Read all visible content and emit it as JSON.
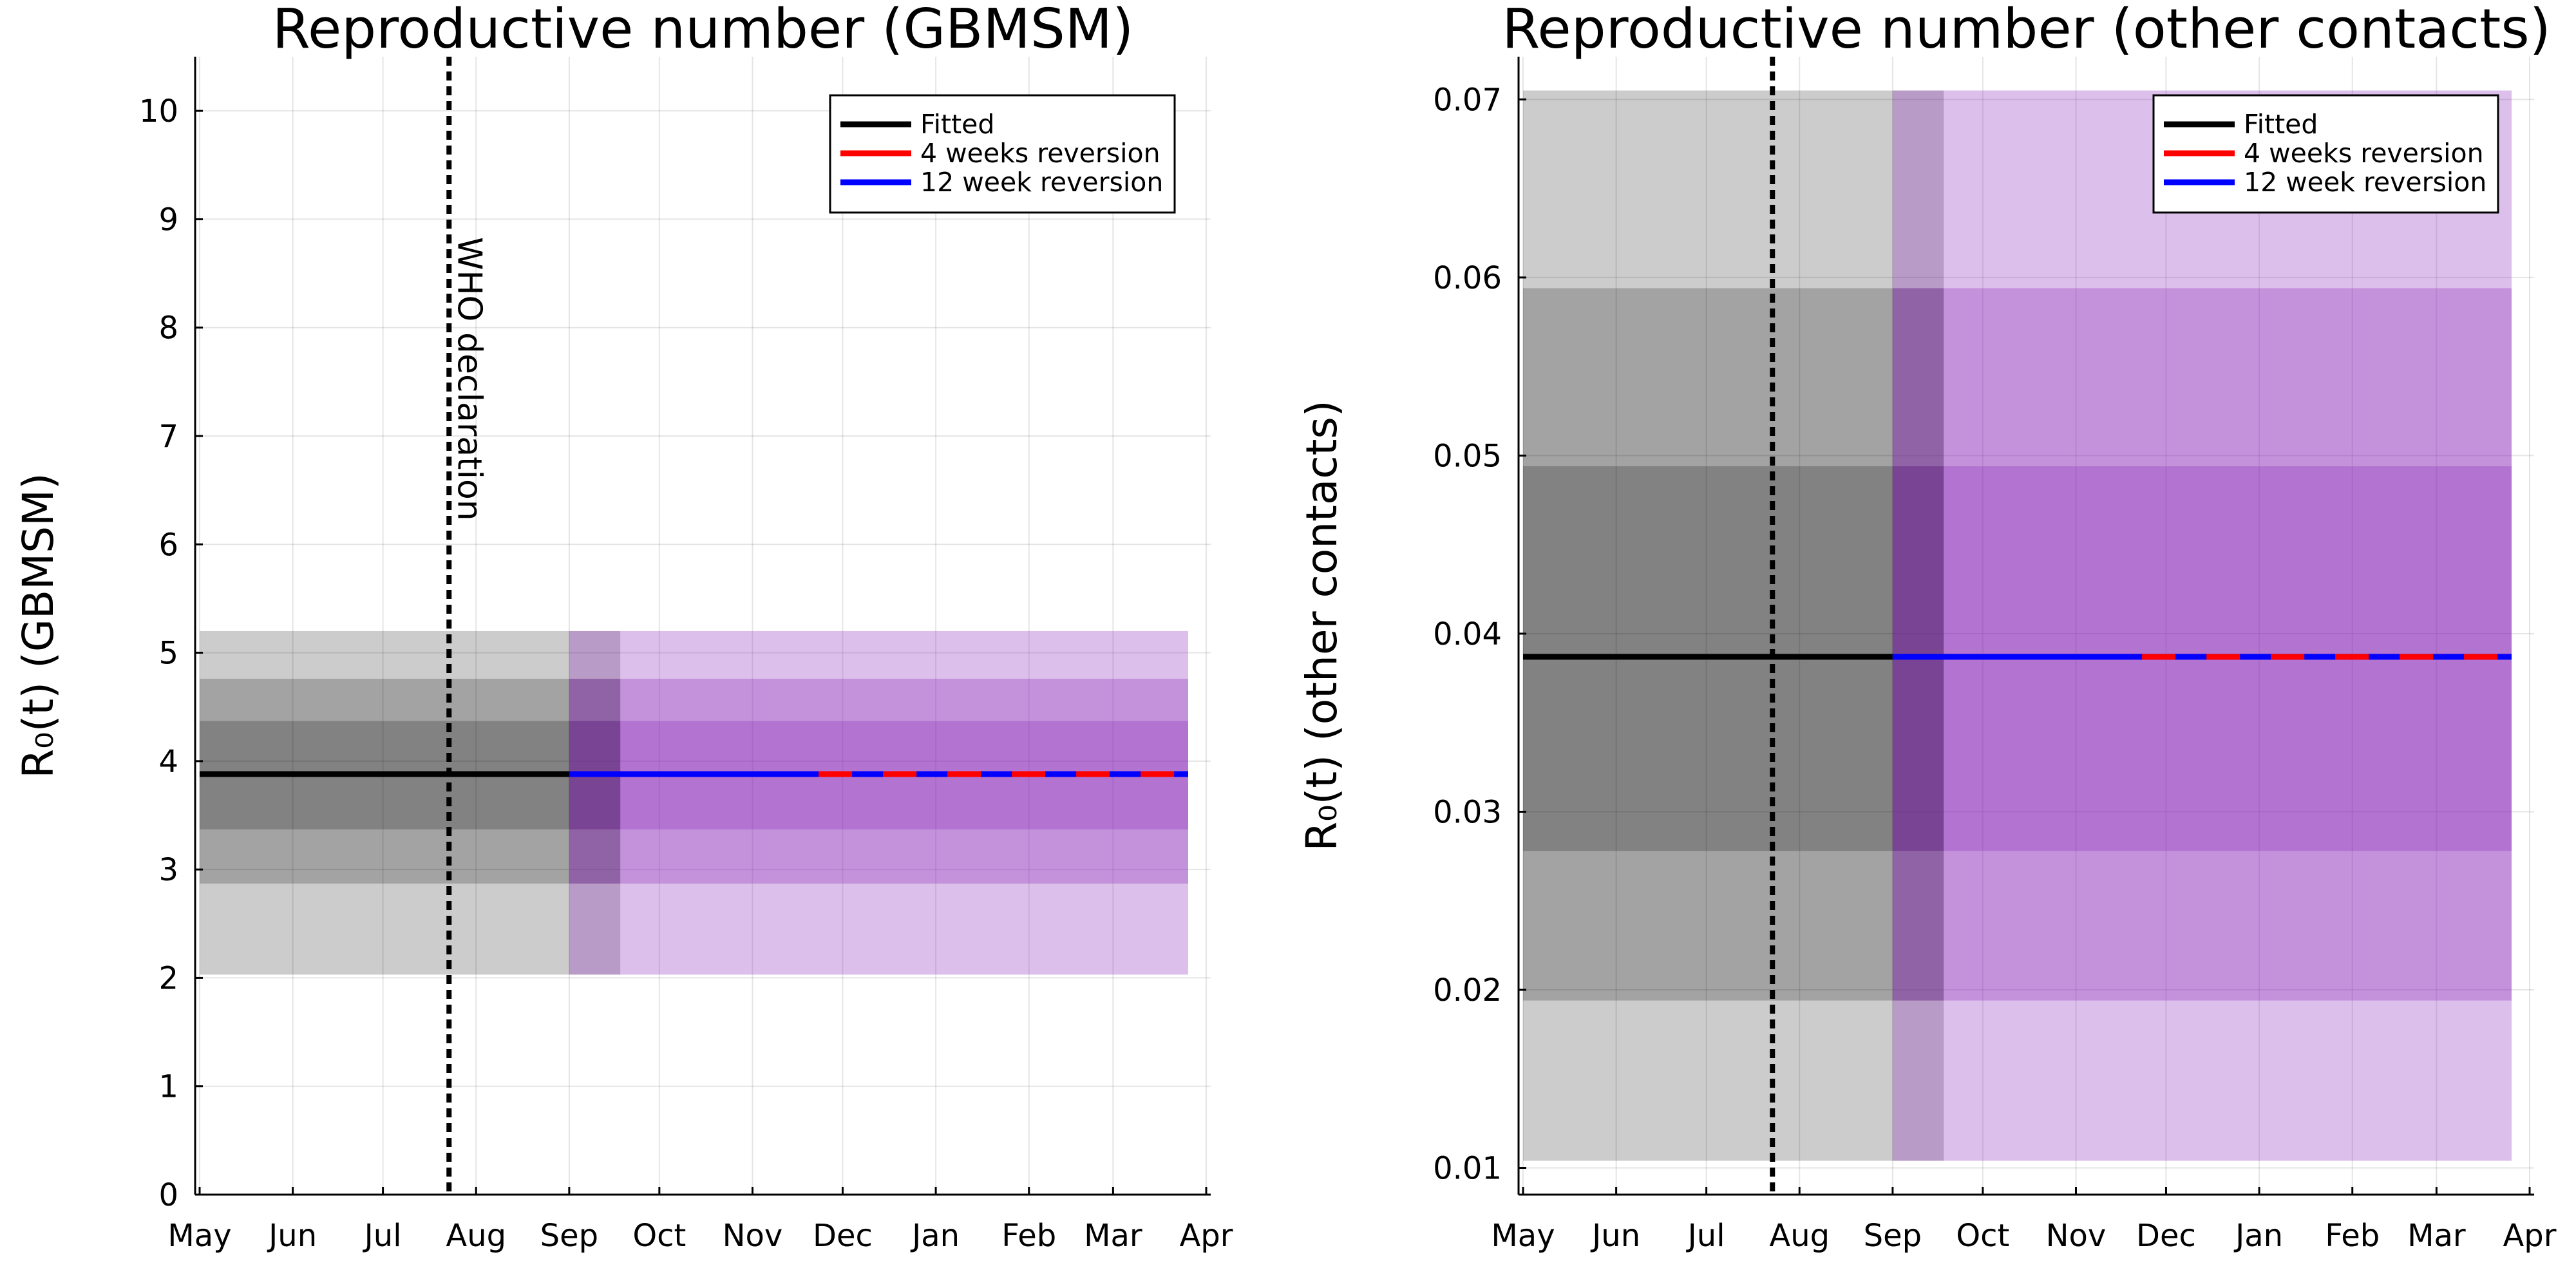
{
  "chart_data": [
    {
      "type": "area",
      "title": "Reproductive number (GBMSM)",
      "xlabel": "",
      "ylabel": "R₀(t) (GBMSM)",
      "x_ticks": [
        "May",
        "Jun",
        "Jul",
        "Aug",
        "Sep",
        "Oct",
        "Nov",
        "Dec",
        "Jan",
        "Feb",
        "Mar",
        "Apr"
      ],
      "x_range": [
        "2022-05-01",
        "2023-04-01"
      ],
      "ylim": [
        0,
        10.5
      ],
      "y_ticks": [
        "0",
        "1",
        "2",
        "3",
        "4",
        "5",
        "6",
        "7",
        "8",
        "9",
        "10"
      ],
      "grid": true,
      "legend_position": "top-right",
      "annotation": {
        "text": "WHO declaration",
        "x": "2022-07-23"
      },
      "forecast_start": "2022-09-01",
      "uncertainty_overlap_end": "2022-09-18",
      "x_end": "2023-03-26",
      "series": [
        {
          "name": "Fitted",
          "color": "#000000",
          "x_start": "2022-05-01",
          "x_end": "2022-09-01",
          "value": 3.88
        },
        {
          "name": "4 weeks reversion",
          "color": "#ff0000",
          "x_start": "2022-11-23",
          "x_end": "2023-03-26",
          "value": 3.88,
          "style": "dashed"
        },
        {
          "name": "12 week reversion",
          "color": "#0000ff",
          "x_start": "2022-09-01",
          "x_end": "2023-03-26",
          "value": 3.88
        }
      ],
      "bands": [
        {
          "level": "outer",
          "lower": 2.03,
          "upper": 5.2
        },
        {
          "level": "middle",
          "lower": 2.87,
          "upper": 4.76
        },
        {
          "level": "inner",
          "lower": 3.37,
          "upper": 4.37
        }
      ],
      "colors": {
        "fitted_band": "#000000",
        "forecast_band": "#8a2bb8"
      }
    },
    {
      "type": "area",
      "title": "Reproductive number (other contacts)",
      "xlabel": "",
      "ylabel": "R₀(t) (other contacts)",
      "x_ticks": [
        "May",
        "Jun",
        "Jul",
        "Aug",
        "Sep",
        "Oct",
        "Nov",
        "Dec",
        "Jan",
        "Feb",
        "Mar",
        "Apr"
      ],
      "x_range": [
        "2022-05-01",
        "2023-04-01"
      ],
      "ylim": [
        0.0085,
        0.0724
      ],
      "y_ticks": [
        "0.01",
        "0.02",
        "0.03",
        "0.04",
        "0.05",
        "0.06",
        "0.07"
      ],
      "grid": true,
      "legend_position": "top-right",
      "annotation": {
        "text": "",
        "x": "2022-07-23"
      },
      "forecast_start": "2022-09-01",
      "uncertainty_overlap_end": "2022-09-18",
      "x_end": "2023-03-26",
      "series": [
        {
          "name": "Fitted",
          "color": "#000000",
          "x_start": "2022-05-01",
          "x_end": "2022-09-01",
          "value": 0.0387
        },
        {
          "name": "4 weeks reversion",
          "color": "#ff0000",
          "x_start": "2022-11-23",
          "x_end": "2023-03-26",
          "value": 0.0387,
          "style": "dashed"
        },
        {
          "name": "12 week reversion",
          "color": "#0000ff",
          "x_start": "2022-09-01",
          "x_end": "2023-03-26",
          "value": 0.0387
        }
      ],
      "bands": [
        {
          "level": "outer",
          "lower": 0.0104,
          "upper": 0.0705
        },
        {
          "level": "middle",
          "lower": 0.0194,
          "upper": 0.0594
        },
        {
          "level": "inner",
          "lower": 0.0278,
          "upper": 0.0494
        }
      ],
      "colors": {
        "fitted_band": "#000000",
        "forecast_band": "#8a2bb8"
      }
    }
  ]
}
